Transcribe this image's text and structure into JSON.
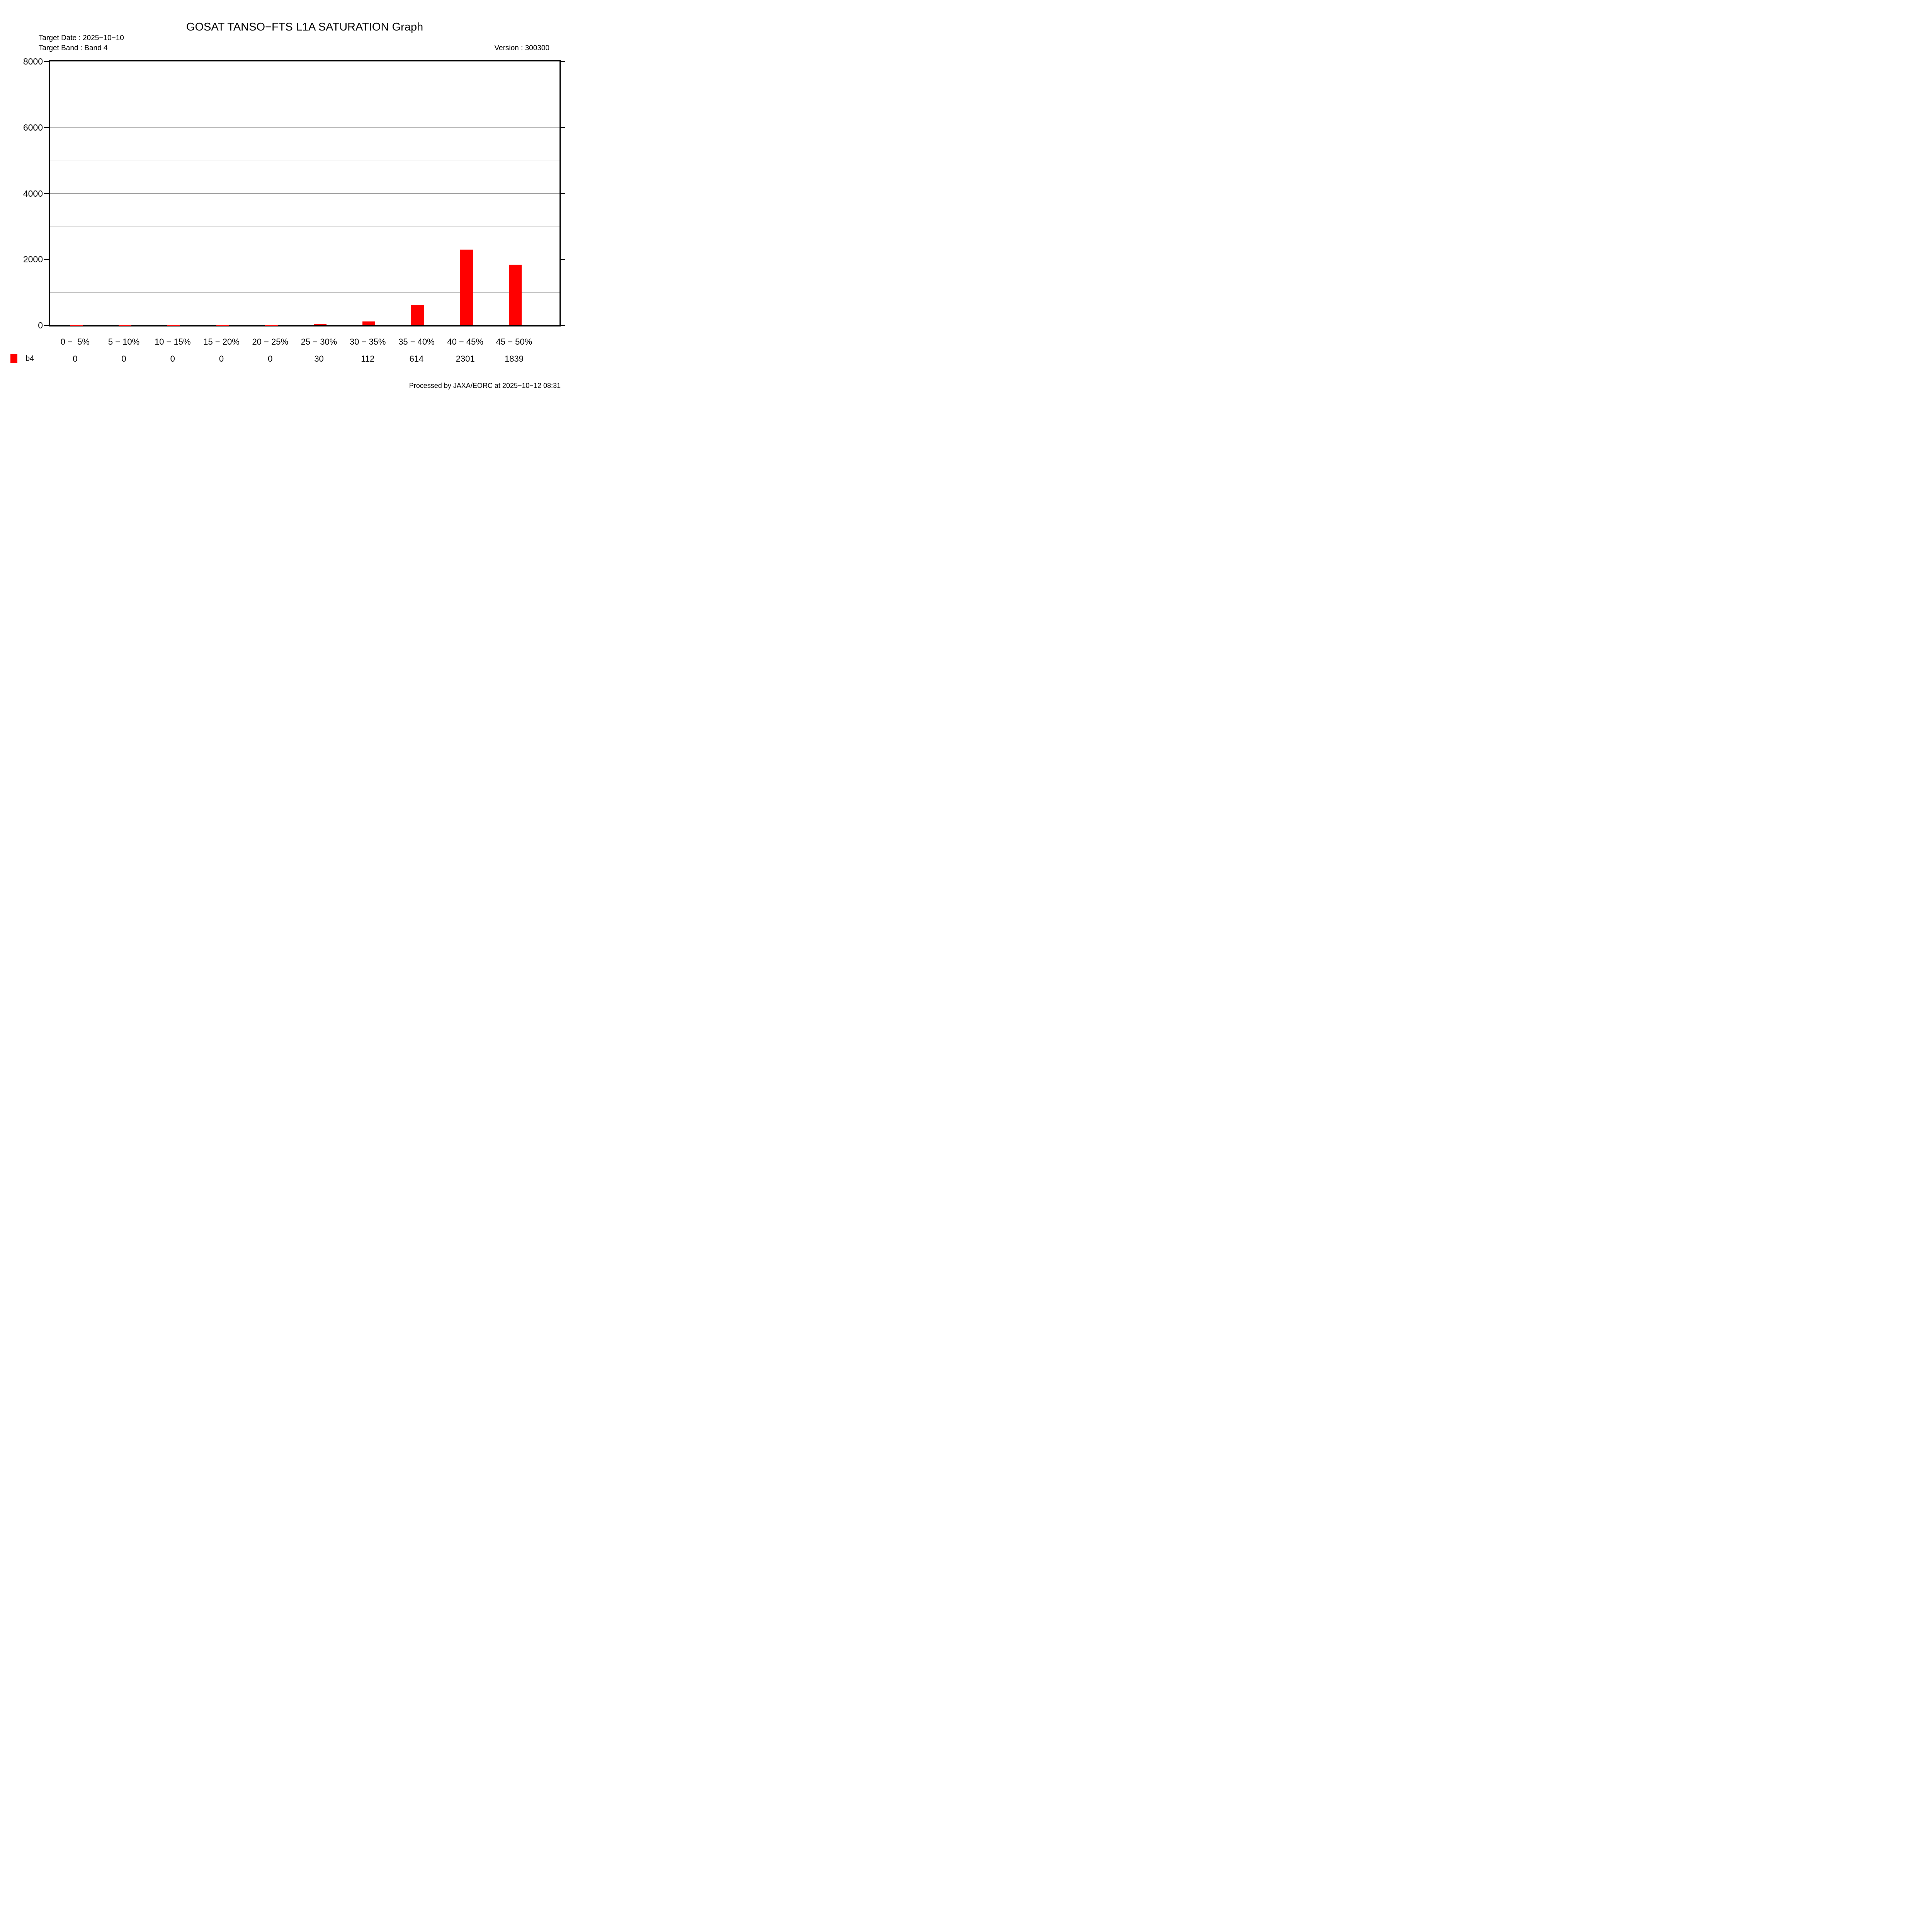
{
  "header": {
    "title": "GOSAT TANSO−FTS L1A SATURATION Graph",
    "target_date_label": "Target Date : 2025−10−10",
    "target_band_label": "Target Band : Band 4",
    "version_label": "Version : 300300"
  },
  "footer": {
    "processed_label": "Processed by JAXA/EORC at 2025−10−12 08:31"
  },
  "colors": {
    "bar": "#ff0000",
    "axis": "#000000",
    "gridline": "#808080",
    "background": "#ffffff"
  },
  "chart_data": {
    "type": "bar",
    "title": "GOSAT TANSO−FTS L1A SATURATION Graph",
    "categories": [
      "0 −  5%",
      "5 − 10%",
      "10 − 15%",
      "15 − 20%",
      "20 − 25%",
      "25 − 30%",
      "30 − 35%",
      "35 − 40%",
      "40 − 45%",
      "45 − 50%"
    ],
    "series": [
      {
        "name": "b4",
        "color": "#ff0000",
        "values": [
          0,
          0,
          0,
          0,
          0,
          30,
          112,
          614,
          2301,
          1839
        ]
      }
    ],
    "xlabel": "",
    "ylabel": "",
    "ylim": [
      0,
      8000
    ],
    "yticks": [
      0,
      2000,
      4000,
      6000,
      8000
    ],
    "ytick_labels": [
      "0",
      "2000",
      "4000",
      "6000",
      "8000"
    ],
    "minor_gridline_interval": 1000,
    "grid": true,
    "gridline_color": "#808080",
    "legend_position": "bottom-left"
  }
}
